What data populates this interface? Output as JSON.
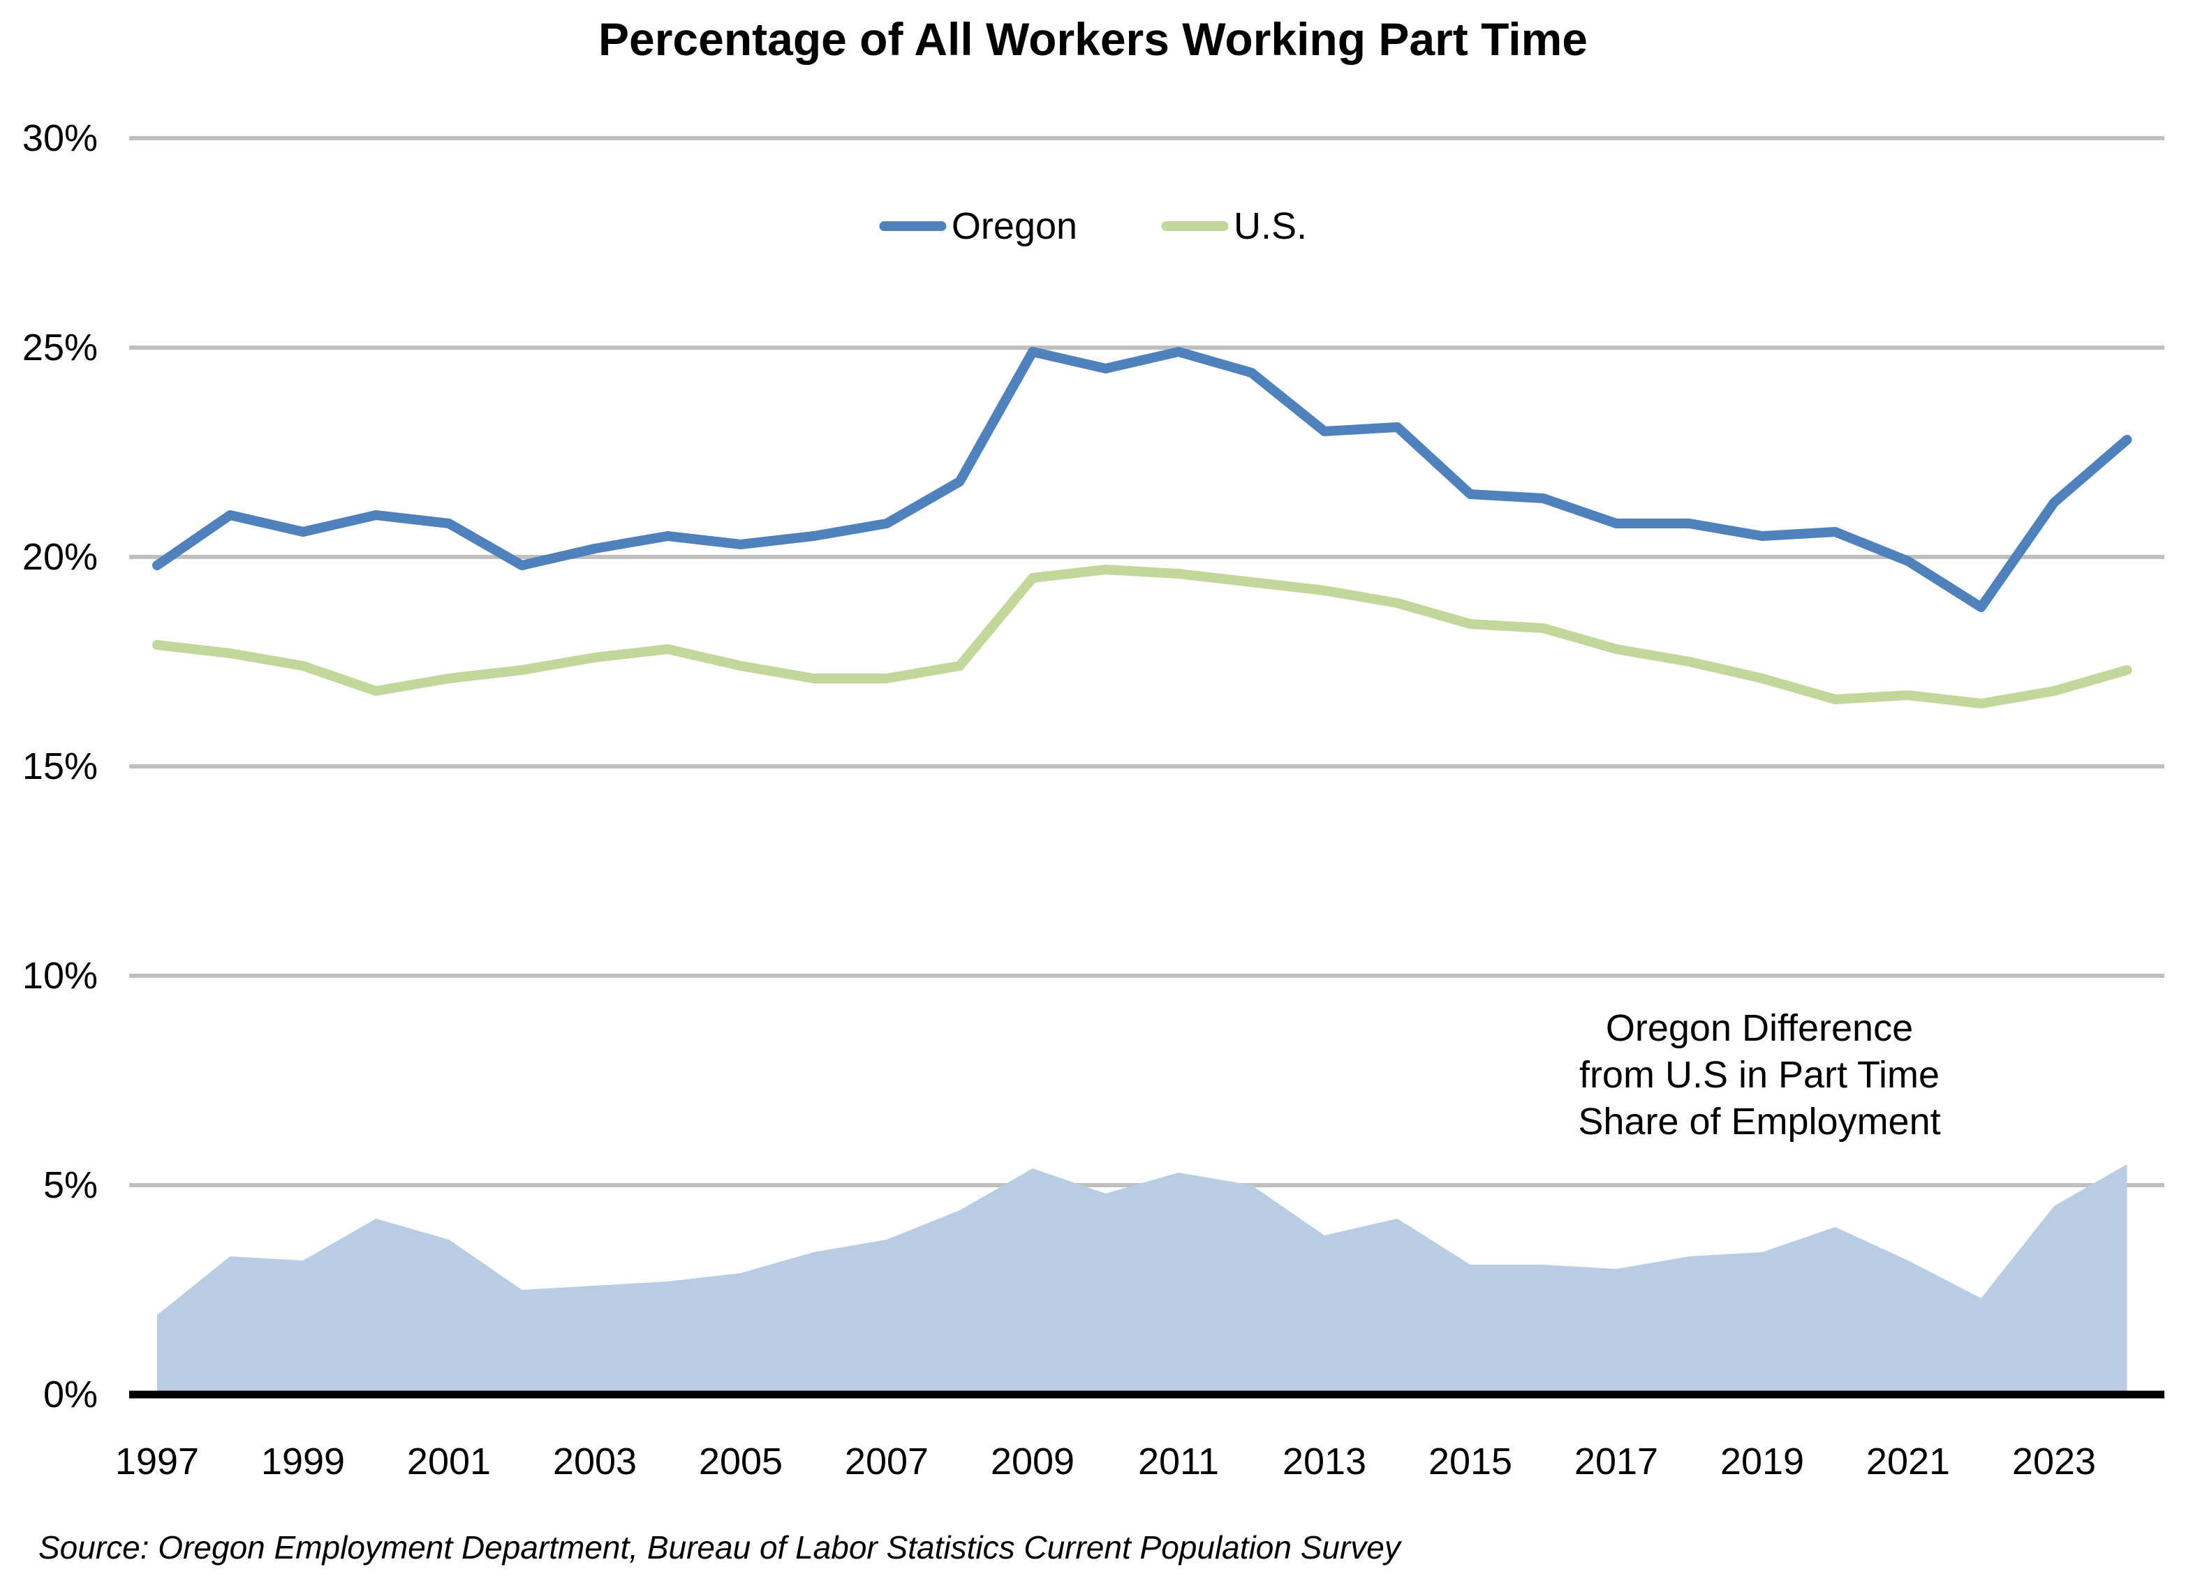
{
  "chart_data": {
    "type": "line+area",
    "title": "Percentage of All Workers Working Part Time",
    "x": [
      1997,
      1998,
      1999,
      2000,
      2001,
      2002,
      2003,
      2004,
      2005,
      2006,
      2007,
      2008,
      2009,
      2010,
      2011,
      2012,
      2013,
      2014,
      2015,
      2016,
      2017,
      2018,
      2019,
      2020,
      2021,
      2022,
      2023,
      2024
    ],
    "x_tick_labels": [
      "1997",
      "1999",
      "2001",
      "2003",
      "2005",
      "2007",
      "2009",
      "2011",
      "2013",
      "2015",
      "2017",
      "2019",
      "2021",
      "2023"
    ],
    "y_tick_labels": [
      "0%",
      "5%",
      "10%",
      "15%",
      "20%",
      "25%",
      "30%"
    ],
    "ylim": [
      0,
      30
    ],
    "y_tick_step": 5,
    "grid": "horizontal",
    "legend_position": "top-center",
    "series": [
      {
        "name": "Oregon",
        "color": "#4F81BD",
        "values": [
          19.8,
          21.0,
          20.6,
          21.0,
          20.8,
          19.8,
          20.2,
          20.5,
          20.3,
          20.5,
          20.8,
          21.8,
          24.9,
          24.5,
          24.9,
          24.4,
          23.0,
          23.1,
          21.5,
          21.4,
          20.8,
          20.8,
          20.5,
          20.6,
          19.9,
          18.8,
          21.3,
          22.8
        ]
      },
      {
        "name": "U.S.",
        "color": "#C4D79B",
        "values": [
          17.9,
          17.7,
          17.4,
          16.8,
          17.1,
          17.3,
          17.6,
          17.8,
          17.4,
          17.1,
          17.1,
          17.4,
          19.5,
          19.7,
          19.6,
          19.4,
          19.2,
          18.9,
          18.4,
          18.3,
          17.8,
          17.5,
          17.1,
          16.6,
          16.7,
          16.5,
          16.8,
          17.3
        ]
      }
    ],
    "area_series": {
      "name": "Oregon Difference from U.S in Part Time Share of Employment",
      "color": "#B8CCE4",
      "values": [
        1.9,
        3.3,
        3.2,
        4.2,
        3.7,
        2.5,
        2.6,
        2.7,
        2.9,
        3.4,
        3.7,
        4.4,
        5.4,
        4.8,
        5.3,
        5.0,
        3.8,
        4.2,
        3.1,
        3.1,
        3.0,
        3.3,
        3.4,
        4.0,
        3.2,
        2.3,
        4.5,
        5.5
      ]
    },
    "annotation": {
      "lines": [
        "Oregon Difference",
        "from U.S in Part Time",
        "Share of Employment"
      ]
    },
    "source": "Source: Oregon Employment Department, Bureau of Labor Statistics Current Population Survey",
    "colors": {
      "gridline": "#BFBFBF",
      "zero_axis": "#000000",
      "background": "#FFFFFF",
      "text": "#000000"
    }
  }
}
